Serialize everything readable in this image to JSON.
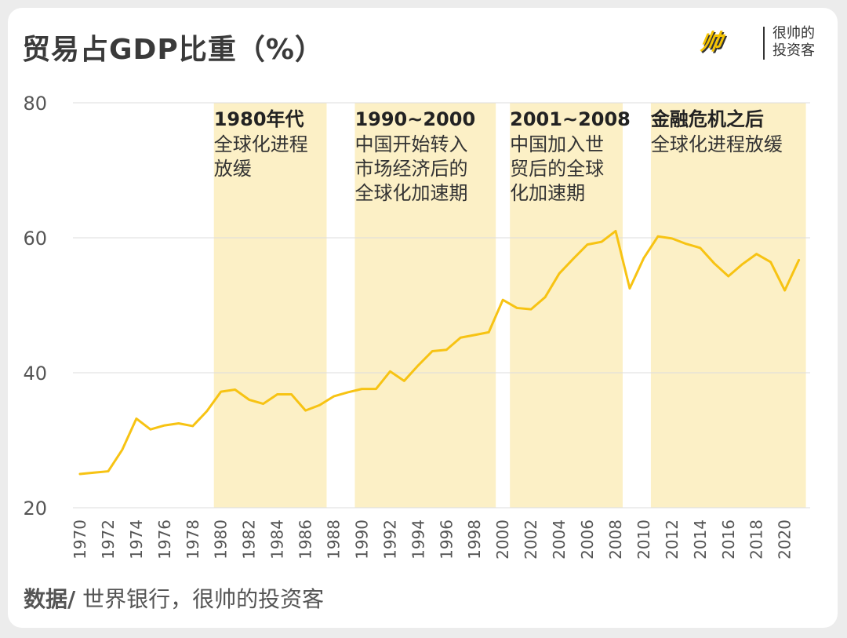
{
  "header": {
    "title": "贸易占GDP比重（%）",
    "logo_mark": "帅",
    "logo_text_line1": "很帅的",
    "logo_text_line2": "投资客"
  },
  "footer": {
    "source_label": "数据/",
    "source_text": "世界银行，很帅的投资客"
  },
  "colors": {
    "line": "#f7c313",
    "band": "#fcf0c6",
    "grid": "#dddddd",
    "axis_text": "#555555"
  },
  "chart_data": {
    "type": "line",
    "title": "贸易占GDP比重（%）",
    "ylim": [
      20,
      80
    ],
    "yticks": [
      20,
      40,
      60,
      80
    ],
    "xlim": [
      1970,
      2021
    ],
    "xticks": [
      1970,
      1972,
      1974,
      1976,
      1978,
      1980,
      1982,
      1984,
      1986,
      1988,
      1990,
      1992,
      1994,
      1996,
      1998,
      2000,
      2002,
      2004,
      2006,
      2008,
      2010,
      2012,
      2014,
      2016,
      2018,
      2020
    ],
    "x": [
      1970,
      1971,
      1972,
      1973,
      1974,
      1975,
      1976,
      1977,
      1978,
      1979,
      1980,
      1981,
      1982,
      1983,
      1984,
      1985,
      1986,
      1987,
      1988,
      1989,
      1990,
      1991,
      1992,
      1993,
      1994,
      1995,
      1996,
      1997,
      1998,
      1999,
      2000,
      2001,
      2002,
      2003,
      2004,
      2005,
      2006,
      2007,
      2008,
      2009,
      2010,
      2011,
      2012,
      2013,
      2014,
      2015,
      2016,
      2017,
      2018,
      2019,
      2020,
      2021
    ],
    "series": [
      {
        "values": [
          25.0,
          25.2,
          25.4,
          28.6,
          33.2,
          31.6,
          32.2,
          32.5,
          32.1,
          34.3,
          37.2,
          37.5,
          36.0,
          35.4,
          36.8,
          36.8,
          34.4,
          35.2,
          36.5,
          37.1,
          37.6,
          37.6,
          40.2,
          38.8,
          41.1,
          43.2,
          43.4,
          45.2,
          45.6,
          46.0,
          50.8,
          49.6,
          49.4,
          51.2,
          54.7,
          56.9,
          59.0,
          59.4,
          61.0,
          52.5,
          57.0,
          60.2,
          59.9,
          59.1,
          58.5,
          56.2,
          54.3,
          56.1,
          57.6,
          56.4,
          52.2,
          56.7
        ]
      }
    ],
    "annotations": [
      {
        "start": 1980,
        "end": 1988,
        "title": "1980年代",
        "lines": [
          "全球化进程",
          "放缓"
        ]
      },
      {
        "start": 1990,
        "end": 2000,
        "title": "1990~2000",
        "lines": [
          "中国开始转入",
          "市场经济后的",
          "全球化加速期"
        ]
      },
      {
        "start": 2001,
        "end": 2009,
        "title": "2001~2008",
        "lines": [
          "中国加入世",
          "贸后的全球",
          "化加速期"
        ]
      },
      {
        "start": 2011,
        "end": 2022,
        "title": "金融危机之后",
        "lines": [
          "全球化进程放缓"
        ]
      }
    ],
    "grid": true,
    "legend": "none"
  }
}
